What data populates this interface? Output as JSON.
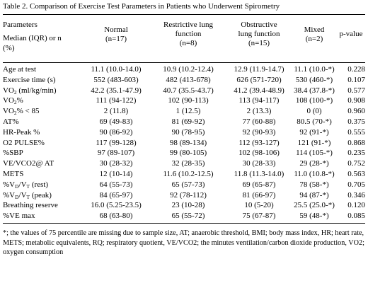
{
  "caption": "Table 2. Comparison of Exercise Test Parameters in Patients who Underwent Spirometry",
  "header": {
    "parameters": "Parameters",
    "median_line": "Median (IQR) or n",
    "percent_line": "(%)",
    "normal_line1": "Normal",
    "normal_line2": "(n=17)",
    "restrictive_line1": "Restrictive lung",
    "restrictive_line2": "function",
    "restrictive_line3": "(n=8)",
    "obstructive_line1": "Obstructive",
    "obstructive_line2": "lung function",
    "obstructive_line3": "(n=15)",
    "mixed_line1": "Mixed",
    "mixed_line2": "(n=2)",
    "pvalue": "p-value"
  },
  "rows": [
    {
      "param": "Age at test",
      "normal": "11.1 (10.0-14.0)",
      "restrictive": "10.9 (10.2-12.4)",
      "obstructive": "12.9 (11.9-14.7)",
      "mixed": "11.1 (10.0-*)",
      "p": "0.228"
    },
    {
      "param": "Exercise time (s)",
      "normal": "552 (483-603)",
      "restrictive": "482 (413-678)",
      "obstructive": "626 (571-720)",
      "mixed": "530 (460-*)",
      "p": "0.107"
    },
    {
      "param_a": "VO",
      "param_sub": "2",
      "param_b": " (ml/kg/min)",
      "normal": "42.2 (35.1-47.9)",
      "restrictive": "40.7 (35.5-43.7)",
      "obstructive": "41.2 (39.4-48.9)",
      "mixed": "38.4 (37.8-*)",
      "p": "0.577"
    },
    {
      "param_a": "VO",
      "param_sub": "2",
      "param_b": "%",
      "normal": "111 (94-122)",
      "restrictive": "102 (90-113)",
      "obstructive": "113 (94-117)",
      "mixed": "108 (100-*)",
      "p": "0.908"
    },
    {
      "param_a": "VO",
      "param_sub": "2",
      "param_b": "% < 85",
      "normal": "2 (11.8)",
      "restrictive": "1 (12.5)",
      "obstructive": "2 (13.3)",
      "mixed": "0 (0)",
      "p": "0.960"
    },
    {
      "param": "AT%",
      "normal": "69 (49-83)",
      "restrictive": "81 (69-92)",
      "obstructive": "77 (60-88)",
      "mixed": "80.5 (70-*)",
      "p": "0.375"
    },
    {
      "param": "HR-Peak %",
      "normal": "90 (86-92)",
      "restrictive": "90 (78-95)",
      "obstructive": "92 (90-93)",
      "mixed": "92 (91-*)",
      "p": "0.555"
    },
    {
      "param": "O2 PULSE%",
      "normal": "117 (99-128)",
      "restrictive": "98 (89-134)",
      "obstructive": "112 (93-127)",
      "mixed": "121 (91-*)",
      "p": "0.868"
    },
    {
      "param": "%SBP",
      "normal": "97 (89-107)",
      "restrictive": "99 (80-105)",
      "obstructive": "102 (98-106)",
      "mixed": "114 (105-*)",
      "p": "0.235"
    },
    {
      "param": "VE/VCO2@ AT",
      "normal": "30 (28-32)",
      "restrictive": "32 (28-35)",
      "obstructive": "30 (28-33)",
      "mixed": "29 (28-*)",
      "p": "0.752"
    },
    {
      "param": "METS",
      "normal": "12 (10-14)",
      "restrictive": "11.6 (10.2-12.5)",
      "obstructive": "11.8 (11.3-14.0)",
      "mixed": "11.0 (10.8-*)",
      "p": "0.563"
    },
    {
      "param_a": "%V",
      "param_sub": "D",
      "param_b": "/V",
      "param_sub2": "T",
      "param_c": " (rest)",
      "normal": "64 (55-73)",
      "restrictive": "65 (57-73)",
      "obstructive": "69 (65-87)",
      "mixed": "78 (58-*)",
      "p": "0.705"
    },
    {
      "param_a": "%V",
      "param_sub": "D",
      "param_b": "/V",
      "param_sub2": "T",
      "param_c": " (peak)",
      "normal": "84 (65-97)",
      "restrictive": "92 (78-112)",
      "obstructive": "81 (66-97)",
      "mixed": "94 (87-*)",
      "p": "0.346"
    },
    {
      "param": "Breathing reserve",
      "normal": "16.0 (5.25-23.5)",
      "restrictive": "23 (10-28)",
      "obstructive": "10 (5-20)",
      "mixed": "25.5 (25.0-*)",
      "p": "0.120"
    },
    {
      "param": "%VE max",
      "normal": "68 (63-80)",
      "restrictive": "65 (55-72)",
      "obstructive": "75 (67-87)",
      "mixed": "59 (48-*)",
      "p": "0.085"
    }
  ],
  "footnote": "*; the values of 75 percentile are missing due to sample size, AT; anaerobic threshold, BMI; body mass index, HR; heart rate, METS; metabolic equivalents, RQ; respiratory quotient, VE/VCO2; the minutes ventilation/carbon dioxide production, VO2; oxygen consumption"
}
